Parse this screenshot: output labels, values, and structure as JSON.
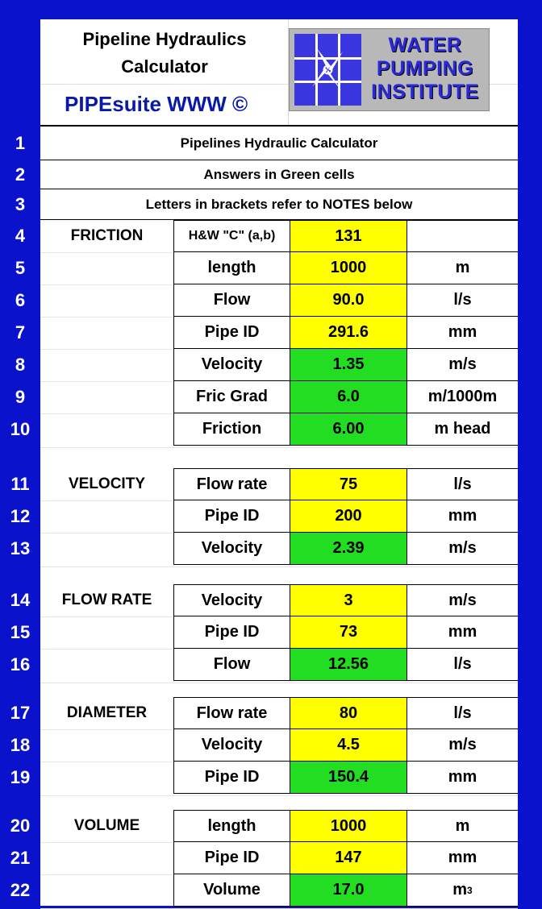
{
  "header": {
    "title_line1": "Pipeline Hydraulics",
    "title_line2": "Calculator",
    "suite": "PIPEsuite WWW ©",
    "logo_line1": "WATER",
    "logo_line2": "PUMPING",
    "logo_line3": "INSTITUTE",
    "logo_icon": "compass-window-icon"
  },
  "info_rows": [
    {
      "num": "1",
      "text": "Pipelines Hydraulic Calculator"
    },
    {
      "num": "2",
      "text": "Answers in Green cells"
    },
    {
      "num": "3",
      "text": "Letters in brackets refer to NOTES below"
    }
  ],
  "sections": [
    {
      "name": "FRICTION",
      "rows": [
        {
          "num": "4",
          "label": "H&W \"C\" (a,b)",
          "value": "131",
          "unit": "",
          "kind": "input"
        },
        {
          "num": "5",
          "label": "length",
          "value": "1000",
          "unit": "m",
          "kind": "input"
        },
        {
          "num": "6",
          "label": "Flow",
          "value": "90.0",
          "unit": "l/s",
          "kind": "input"
        },
        {
          "num": "7",
          "label": "Pipe ID",
          "value": "291.6",
          "unit": "mm",
          "kind": "input"
        },
        {
          "num": "8",
          "label": "Velocity",
          "value": "1.35",
          "unit": "m/s",
          "kind": "answer"
        },
        {
          "num": "9",
          "label": "Fric Grad",
          "value": "6.0",
          "unit": "m/1000m",
          "kind": "answer"
        },
        {
          "num": "10",
          "label": "Friction",
          "value": "6.00",
          "unit": "m head",
          "kind": "answer"
        }
      ]
    },
    {
      "name": "VELOCITY",
      "rows": [
        {
          "num": "11",
          "label": "Flow rate",
          "value": "75",
          "unit": "l/s",
          "kind": "input"
        },
        {
          "num": "12",
          "label": "Pipe ID",
          "value": "200",
          "unit": "mm",
          "kind": "input"
        },
        {
          "num": "13",
          "label": "Velocity",
          "value": "2.39",
          "unit": "m/s",
          "kind": "answer"
        }
      ]
    },
    {
      "name": "FLOW RATE",
      "rows": [
        {
          "num": "14",
          "label": "Velocity",
          "value": "3",
          "unit": "m/s",
          "kind": "input"
        },
        {
          "num": "15",
          "label": "Pipe ID",
          "value": "73",
          "unit": "mm",
          "kind": "input"
        },
        {
          "num": "16",
          "label": "Flow",
          "value": "12.56",
          "unit": "l/s",
          "kind": "answer"
        }
      ]
    },
    {
      "name": "DIAMETER",
      "rows": [
        {
          "num": "17",
          "label": "Flow rate",
          "value": "80",
          "unit": "l/s",
          "kind": "input"
        },
        {
          "num": "18",
          "label": "Velocity",
          "value": "4.5",
          "unit": "m/s",
          "kind": "input"
        },
        {
          "num": "19",
          "label": "Pipe ID",
          "value": "150.4",
          "unit": "mm",
          "kind": "answer"
        }
      ]
    },
    {
      "name": "VOLUME",
      "rows": [
        {
          "num": "20",
          "label": "length",
          "value": "1000",
          "unit": "m",
          "kind": "input"
        },
        {
          "num": "21",
          "label": "Pipe ID",
          "value": "147",
          "unit": "mm",
          "kind": "input"
        },
        {
          "num": "22",
          "label": "Volume",
          "value": "17.0",
          "unit": "m³",
          "kind": "answer"
        }
      ]
    }
  ],
  "colors": {
    "border_blue": "#0a12cc",
    "input_cell": "#ffff00",
    "answer_cell": "#22dd22",
    "suite_text": "#0a1aa8"
  }
}
